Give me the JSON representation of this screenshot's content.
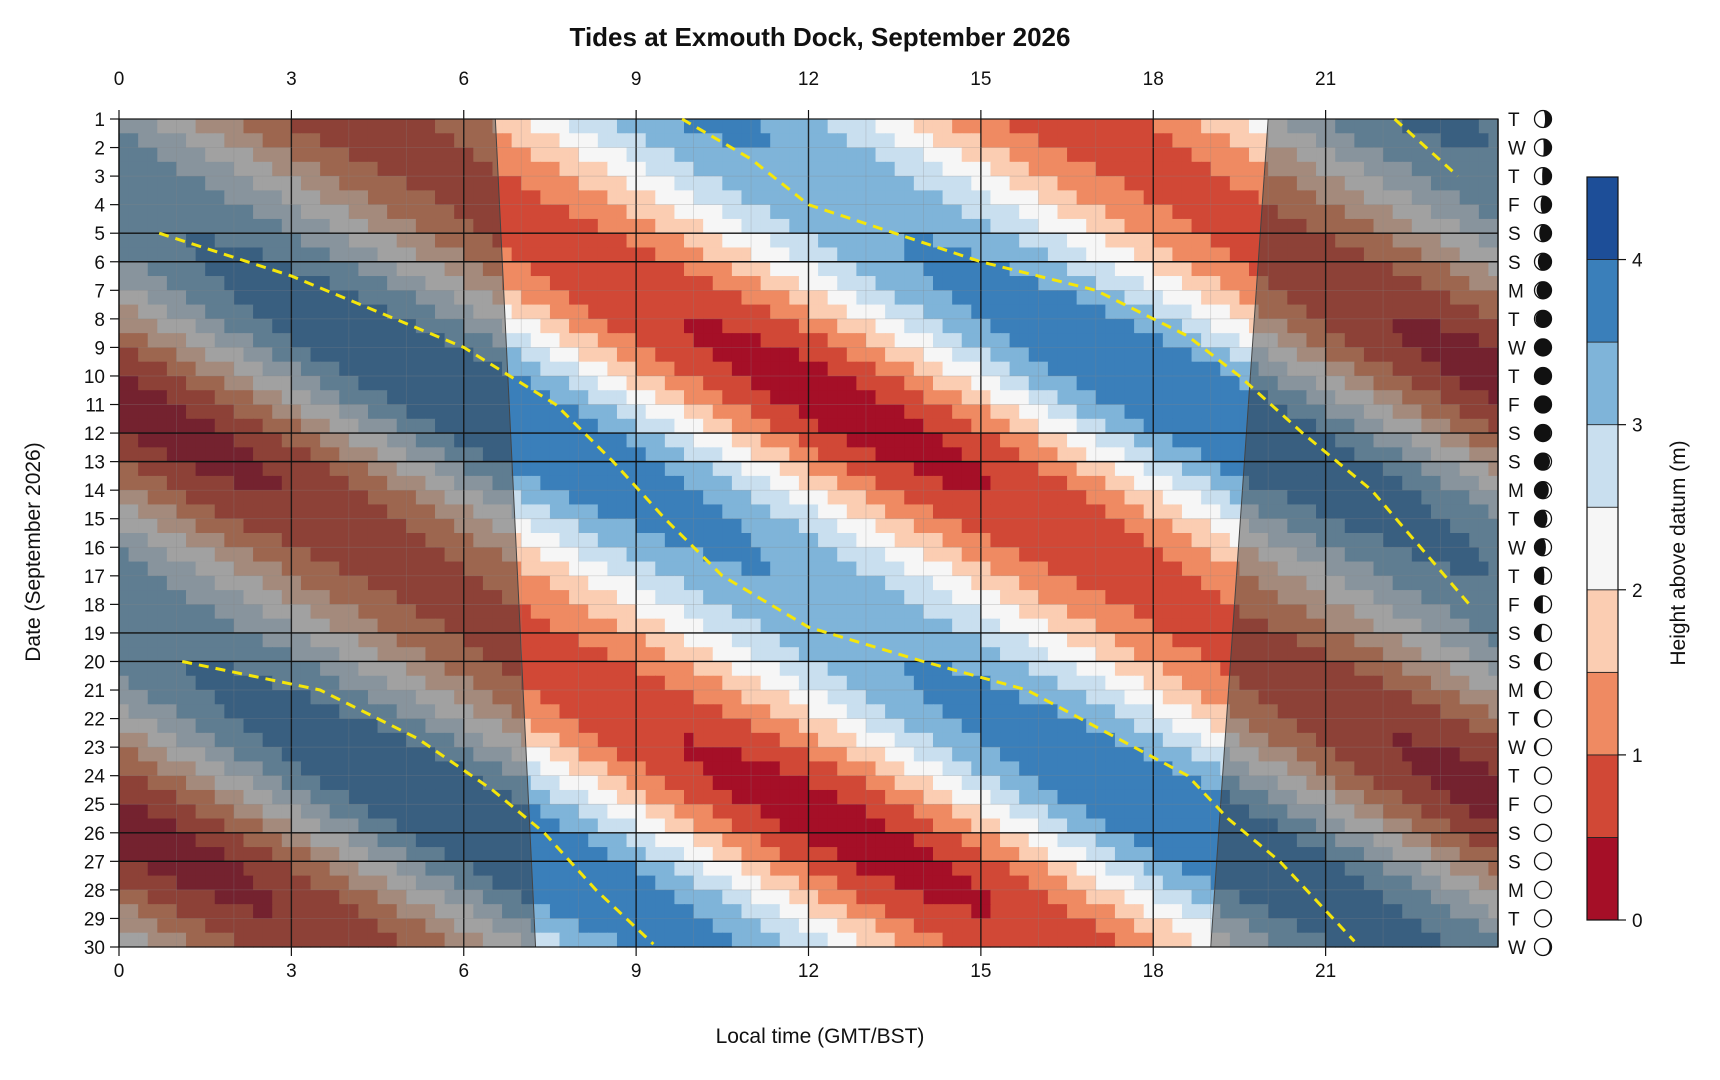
{
  "chart_data": {
    "type": "heatmap",
    "title": "Tides at Exmouth Dock, September 2026",
    "xlabel": "Local time (GMT/BST)",
    "ylabel": "Date (September 2026)",
    "colorbar_label": "Height above datum (m)",
    "xlim": [
      0,
      24
    ],
    "ylim": [
      1,
      30
    ],
    "x_ticks": [
      "0",
      "3",
      "6",
      "9",
      "12",
      "15",
      "18",
      "21"
    ],
    "y_ticks": [
      "1",
      "2",
      "3",
      "4",
      "5",
      "6",
      "7",
      "8",
      "9",
      "10",
      "11",
      "12",
      "13",
      "14",
      "15",
      "16",
      "17",
      "18",
      "19",
      "20",
      "21",
      "22",
      "23",
      "24",
      "25",
      "26",
      "27",
      "28",
      "29",
      "30"
    ],
    "weekdays": [
      "T",
      "W",
      "T",
      "F",
      "S",
      "S",
      "M",
      "T",
      "W",
      "T",
      "F",
      "S",
      "S",
      "M",
      "T",
      "W",
      "T",
      "F",
      "S",
      "S",
      "M",
      "T",
      "W",
      "T",
      "F",
      "S",
      "S",
      "M",
      "T",
      "W"
    ],
    "moon_illumination": [
      0.62,
      0.54,
      0.45,
      0.36,
      0.28,
      0.2,
      0.12,
      0.06,
      0.02,
      0.0,
      0.01,
      0.04,
      0.09,
      0.16,
      0.24,
      0.33,
      0.42,
      0.51,
      0.6,
      0.68,
      0.76,
      0.83,
      0.89,
      0.94,
      0.97,
      0.99,
      1.0,
      0.98,
      0.94,
      0.88
    ],
    "moon_waxing": [
      false,
      false,
      false,
      false,
      false,
      false,
      false,
      false,
      false,
      false,
      true,
      true,
      true,
      true,
      true,
      true,
      true,
      true,
      true,
      true,
      true,
      true,
      true,
      true,
      true,
      true,
      false,
      false,
      false,
      false
    ],
    "colorbar_ticks": [
      "0",
      "1",
      "2",
      "3",
      "4"
    ],
    "zlim": [
      0,
      4.5
    ],
    "levels": [
      0,
      0.5,
      1.0,
      1.5,
      2.0,
      2.5,
      3.0,
      3.5,
      4.0,
      4.5
    ],
    "level_colors": [
      "#a50f27",
      "#d14836",
      "#ef8a62",
      "#fbcdb2",
      "#f6f6f6",
      "#c9dfef",
      "#7fb4d9",
      "#3a7fba",
      "#1d4e98"
    ],
    "tide_model": {
      "mean": 2.15,
      "amplitude": [
        1.85,
        1.3
      ],
      "amplitude_phase_day": 11,
      "high_water_hour_day1": 10.3,
      "daily_shift_hours": 0.84,
      "period_hours": 12.42
    },
    "daylight": {
      "sunrise": [
        6.55,
        7.25
      ],
      "sunset": [
        20.0,
        19.0
      ]
    },
    "dst_shift_days": [
      5,
      6,
      12,
      13,
      19,
      20,
      26,
      27
    ],
    "high_water_lines": [
      {
        "x": [
          9.8,
          11.0,
          12.0,
          13.5,
          15.0,
          17.0,
          18.6,
          19.5,
          20.6,
          21.8,
          23.5
        ],
        "y": [
          1,
          2.4,
          4,
          5,
          6,
          7,
          8.6,
          10,
          12,
          14,
          18
        ]
      },
      {
        "x": [
          22.2,
          23.3
        ],
        "y": [
          1,
          3
        ]
      },
      {
        "x": [
          0.7,
          3.0,
          6.0,
          7.6,
          8.6,
          9.5,
          10.5,
          12.0,
          14.0,
          15.8,
          17.2,
          18.6,
          19.3,
          20.2,
          21.5
        ],
        "y": [
          5,
          6.5,
          9,
          11,
          13,
          15,
          17,
          18.8,
          20,
          21,
          22.5,
          24,
          25.5,
          27,
          29.8
        ]
      },
      {
        "x": [
          1.1,
          3.5,
          5.2,
          6.5,
          7.4,
          8.3,
          9.3
        ],
        "y": [
          20,
          21,
          22.7,
          24.5,
          26,
          28,
          29.9
        ]
      }
    ]
  }
}
